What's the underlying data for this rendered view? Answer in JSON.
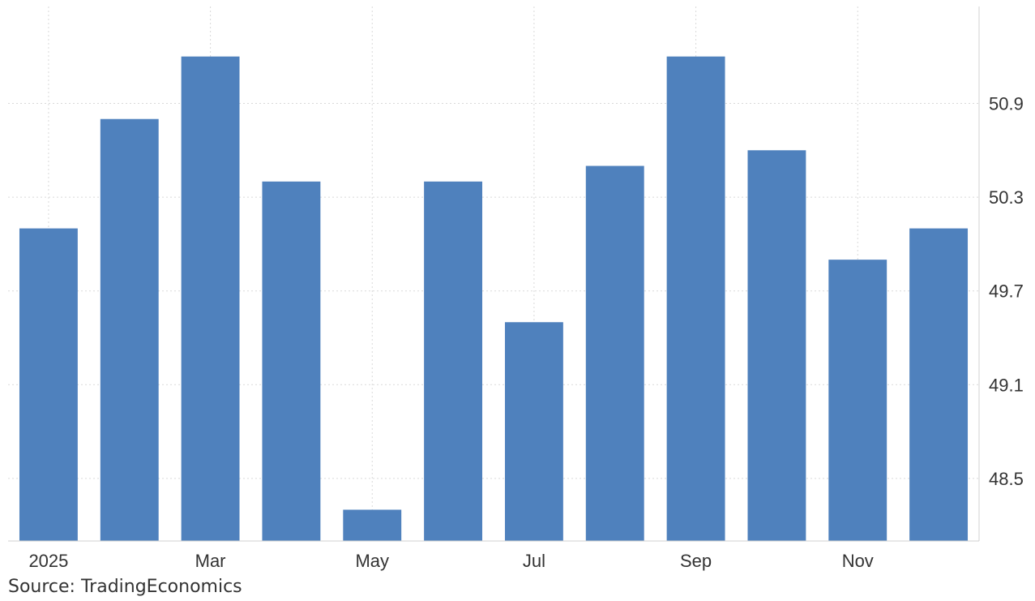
{
  "chart_data": {
    "type": "bar",
    "categories": [
      "Jan",
      "Feb",
      "Mar",
      "Apr",
      "May",
      "Jun",
      "Jul",
      "Aug",
      "Sep",
      "Oct",
      "Nov",
      "Dec"
    ],
    "series": [
      {
        "values": [
          50.1,
          50.8,
          51.2,
          50.4,
          48.3,
          50.4,
          49.5,
          50.5,
          51.2,
          50.6,
          49.9,
          50.1
        ],
        "color": "#4f81bd"
      }
    ],
    "x_tick_labels": [
      {
        "category": "Jan",
        "label": "2025"
      },
      {
        "category": "Mar",
        "label": "Mar"
      },
      {
        "category": "May",
        "label": "May"
      },
      {
        "category": "Jul",
        "label": "Jul"
      },
      {
        "category": "Sep",
        "label": "Sep"
      },
      {
        "category": "Nov",
        "label": "Nov"
      }
    ],
    "y_ticks": [
      "48.5",
      "49.1",
      "49.7",
      "50.3",
      "50.9"
    ],
    "ylim": [
      48.1,
      51.52
    ],
    "y_axis_position": "right",
    "grid": true,
    "title": "",
    "xlabel": "",
    "ylabel": "",
    "source": "Source: TradingEconomics"
  }
}
